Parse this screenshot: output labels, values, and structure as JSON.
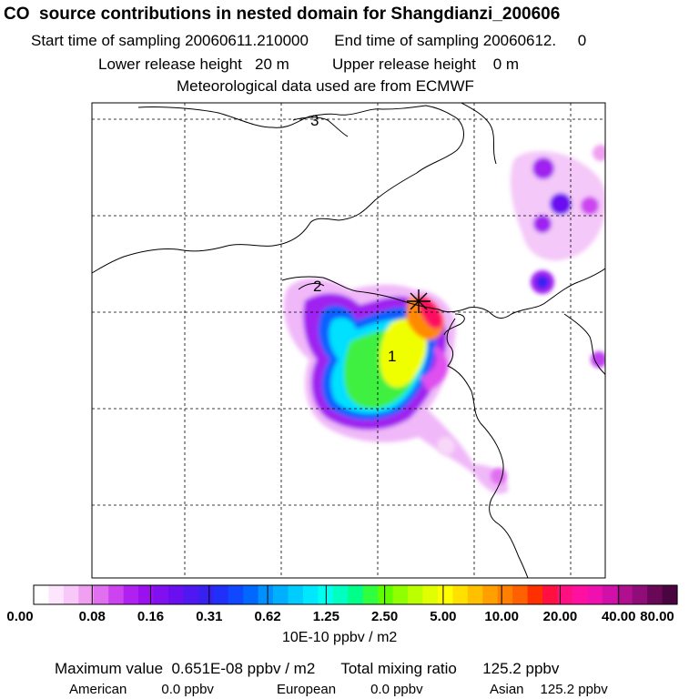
{
  "header": {
    "title": "CO  source contributions in nested domain for Shangdianzi_200606",
    "sampling": "Start time of sampling 20060611.210000      End time of sampling 20060612.     0",
    "release": "Lower release height   20 m          Upper release height    0 m",
    "met": "Meteorological data used are from ECMWF"
  },
  "map": {
    "contour_labels": [
      "3",
      "2",
      "1"
    ],
    "receptor_marker": "receptor-star"
  },
  "colorbar": {
    "labels": [
      "0.00",
      "0.08",
      "0.16",
      "0.31",
      "0.62",
      "1.25",
      "2.50",
      "5.00",
      "10.00",
      "20.00",
      "40.00",
      "80.00"
    ],
    "colors": [
      "#ffffff",
      "#fde6fd",
      "#f8c8f8",
      "#f0a0f0",
      "#e070f0",
      "#cc44f0",
      "#b020f0",
      "#9a10ee",
      "#8010f0",
      "#6a10f0",
      "#5018f0",
      "#3820f0",
      "#2030f8",
      "#1048ff",
      "#0068ff",
      "#0090ff",
      "#00b0ff",
      "#00ccff",
      "#00e8ff",
      "#00ffee",
      "#00ffc0",
      "#00ff88",
      "#30ff40",
      "#60ff00",
      "#90ff00",
      "#bcff00",
      "#e0ff00",
      "#ffff00",
      "#ffe000",
      "#ffc000",
      "#ffa000",
      "#ff8000",
      "#ff6000",
      "#ff3000",
      "#ff1040",
      "#ff1080",
      "#ff10a0",
      "#f010b0",
      "#d010a8",
      "#b01090",
      "#900c78",
      "#6a0858",
      "#4a0440"
    ],
    "units": "10E-10 ppbv / m2"
  },
  "summary": {
    "max_line": "Maximum value  0.651E-08 ppbv / m2      Total mixing ratio      125.2 ppbv",
    "american_label": "American",
    "american_value": "0.0 ppbv",
    "european_label": "European",
    "european_value": "0.0 ppbv",
    "asian_label": "Asian",
    "asian_value": "125.2 ppbv"
  }
}
